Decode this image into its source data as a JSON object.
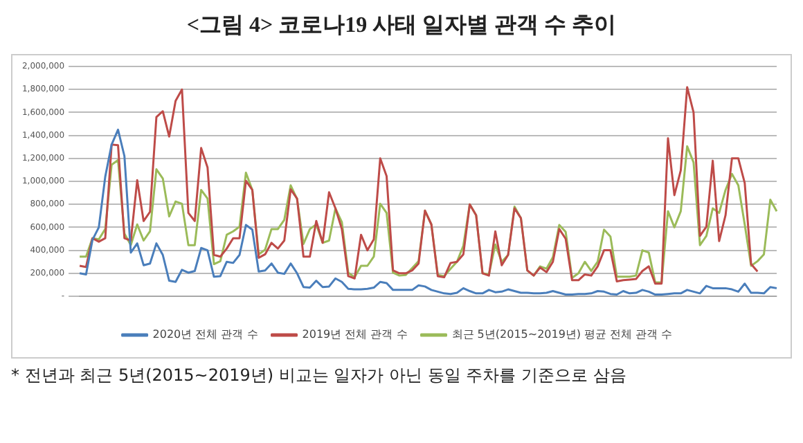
{
  "chart_data": {
    "type": "line",
    "title": "<그림 4> 코로나19 사태 일자별 관객 수 추이",
    "categories": [
      null,
      null,
      null,
      null,
      null,
      null,
      null,
      null,
      null,
      null,
      null,
      null,
      null,
      null,
      null,
      null,
      null,
      null,
      null,
      null,
      null,
      null,
      null,
      null,
      null,
      null,
      null,
      null,
      null,
      null,
      null,
      null,
      null,
      null,
      null,
      null,
      null,
      null,
      null,
      null,
      null,
      null,
      null,
      null,
      null,
      null,
      null,
      null,
      null,
      null,
      null,
      null,
      null,
      null,
      null,
      null,
      null,
      null,
      null,
      null,
      null,
      null,
      null,
      null,
      null,
      null,
      null,
      null,
      null,
      null,
      null,
      null,
      null,
      null,
      null,
      null,
      null,
      null,
      null,
      null,
      null,
      null,
      null,
      null,
      null,
      null,
      null,
      null,
      null,
      null,
      null,
      null,
      null,
      null,
      null,
      null,
      null,
      null,
      null,
      null,
      null,
      null,
      null,
      null,
      null,
      null,
      null,
      null,
      null,
      null
    ],
    "series": [
      {
        "name": "2020년 전체 관객 수",
        "color": "#4a7ebb",
        "values": [
          200000,
          190000,
          490000,
          600000,
          1040000,
          1320000,
          1450000,
          1220000,
          380000,
          460000,
          270000,
          285000,
          460000,
          360000,
          135000,
          125000,
          230000,
          205000,
          220000,
          420000,
          400000,
          170000,
          175000,
          300000,
          290000,
          360000,
          620000,
          580000,
          215000,
          225000,
          285000,
          205000,
          195000,
          285000,
          200000,
          80000,
          75000,
          135000,
          80000,
          85000,
          155000,
          125000,
          65000,
          60000,
          60000,
          65000,
          75000,
          125000,
          115000,
          55000,
          55000,
          55000,
          55000,
          95000,
          85000,
          55000,
          40000,
          25000,
          20000,
          30000,
          70000,
          45000,
          25000,
          25000,
          55000,
          35000,
          40000,
          60000,
          45000,
          30000,
          30000,
          25000,
          25000,
          30000,
          45000,
          30000,
          15000,
          15000,
          20000,
          20000,
          25000,
          45000,
          40000,
          20000,
          15000,
          45000,
          25000,
          30000,
          55000,
          40000,
          15000,
          15000,
          20000,
          25000,
          25000,
          55000,
          40000,
          25000,
          90000,
          70000,
          70000,
          70000,
          60000,
          40000,
          110000,
          30000,
          30000,
          25000,
          80000,
          70000
        ]
      },
      {
        "name": "2019년 전체 관객 수",
        "color": "#be4b48",
        "values": [
          265000,
          255000,
          505000,
          475000,
          505000,
          1320000,
          1315000,
          505000,
          485000,
          1010000,
          655000,
          735000,
          1560000,
          1610000,
          1390000,
          1700000,
          1800000,
          725000,
          655000,
          1290000,
          1120000,
          360000,
          345000,
          415000,
          505000,
          505000,
          1005000,
          925000,
          335000,
          365000,
          465000,
          415000,
          485000,
          930000,
          850000,
          345000,
          345000,
          655000,
          465000,
          905000,
          765000,
          585000,
          175000,
          155000,
          535000,
          400000,
          495000,
          1200000,
          1045000,
          225000,
          200000,
          200000,
          225000,
          285000,
          745000,
          625000,
          175000,
          165000,
          290000,
          300000,
          365000,
          800000,
          705000,
          200000,
          180000,
          565000,
          270000,
          360000,
          765000,
          680000,
          225000,
          180000,
          250000,
          210000,
          300000,
          585000,
          500000,
          140000,
          140000,
          190000,
          180000,
          260000,
          400000,
          400000,
          130000,
          140000,
          145000,
          150000,
          220000,
          260000,
          110000,
          110000,
          1375000,
          880000,
          1095000,
          1820000,
          1600000,
          525000,
          605000,
          1180000,
          480000,
          705000,
          1200000,
          1200000,
          985000,
          280000,
          215000,
          null,
          null,
          null
        ]
      },
      {
        "name": "최근 5년(2015~2019년) 평균 전체 관객 수",
        "color": "#9bbb59",
        "values": [
          345000,
          345000,
          505000,
          495000,
          585000,
          1145000,
          1185000,
          545000,
          445000,
          625000,
          485000,
          565000,
          1105000,
          1025000,
          695000,
          825000,
          805000,
          445000,
          445000,
          925000,
          850000,
          280000,
          305000,
          535000,
          565000,
          605000,
          1075000,
          925000,
          365000,
          405000,
          585000,
          585000,
          665000,
          965000,
          845000,
          455000,
          585000,
          625000,
          465000,
          485000,
          765000,
          645000,
          205000,
          165000,
          265000,
          265000,
          345000,
          805000,
          725000,
          205000,
          180000,
          185000,
          245000,
          305000,
          745000,
          625000,
          185000,
          175000,
          240000,
          300000,
          440000,
          800000,
          705000,
          200000,
          190000,
          450000,
          300000,
          360000,
          780000,
          680000,
          225000,
          180000,
          260000,
          240000,
          340000,
          620000,
          560000,
          160000,
          200000,
          300000,
          220000,
          300000,
          580000,
          520000,
          170000,
          170000,
          170000,
          180000,
          400000,
          380000,
          120000,
          120000,
          740000,
          600000,
          740000,
          1305000,
          1165000,
          445000,
          525000,
          765000,
          725000,
          925000,
          1065000,
          965000,
          625000,
          265000,
          305000,
          365000,
          840000,
          740000
        ]
      }
    ],
    "ylim": [
      0,
      2000000
    ],
    "yticks": [
      {
        "value": 0,
        "label": "-"
      },
      {
        "value": 200000,
        "label": "200,000"
      },
      {
        "value": 400000,
        "label": "400,000"
      },
      {
        "value": 600000,
        "label": "600,000"
      },
      {
        "value": 800000,
        "label": "800,000"
      },
      {
        "value": 1000000,
        "label": "1,000,000"
      },
      {
        "value": 1200000,
        "label": "1,200,000"
      },
      {
        "value": 1400000,
        "label": "1,400,000"
      },
      {
        "value": 1600000,
        "label": "1,600,000"
      },
      {
        "value": 1800000,
        "label": "1,800,000"
      },
      {
        "value": 2000000,
        "label": "2,000,000"
      }
    ],
    "grid": "y",
    "legend": "bottom",
    "marker": "none",
    "line_style": "solid",
    "annotations": [
      "* 전년과 최근 5년(2015~2019년) 비교는 일자가 아닌 동일 주차를 기준으로 삼음"
    ]
  }
}
